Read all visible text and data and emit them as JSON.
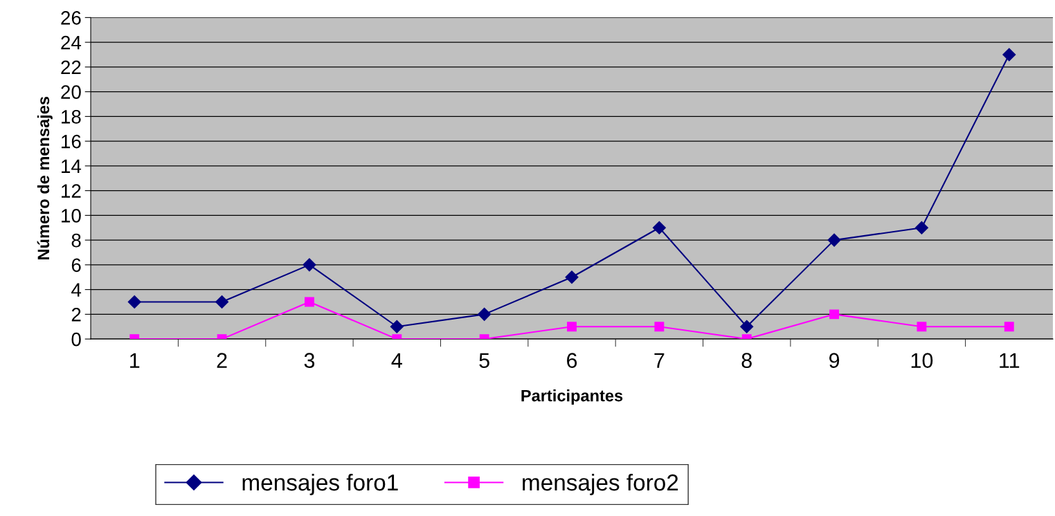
{
  "chart_data": {
    "type": "line",
    "xlabel": "Participantes",
    "ylabel": "Número de mensajes",
    "categories": [
      "1",
      "2",
      "3",
      "4",
      "5",
      "6",
      "7",
      "8",
      "9",
      "10",
      "11"
    ],
    "series": [
      {
        "name": "mensajes foro1",
        "color": "#000080",
        "marker": "diamond",
        "values": [
          3,
          3,
          6,
          1,
          2,
          5,
          9,
          1,
          8,
          9,
          23
        ]
      },
      {
        "name": "mensajes foro2",
        "color": "#ff00ff",
        "marker": "square",
        "values": [
          0,
          0,
          3,
          0,
          0,
          1,
          1,
          0,
          2,
          1,
          1
        ]
      }
    ],
    "ylim": [
      0,
      26
    ],
    "yticks": [
      0,
      2,
      4,
      6,
      8,
      10,
      12,
      14,
      16,
      18,
      20,
      22,
      24,
      26
    ],
    "grid": "y",
    "legend": "bottom",
    "line_style": "solid"
  }
}
